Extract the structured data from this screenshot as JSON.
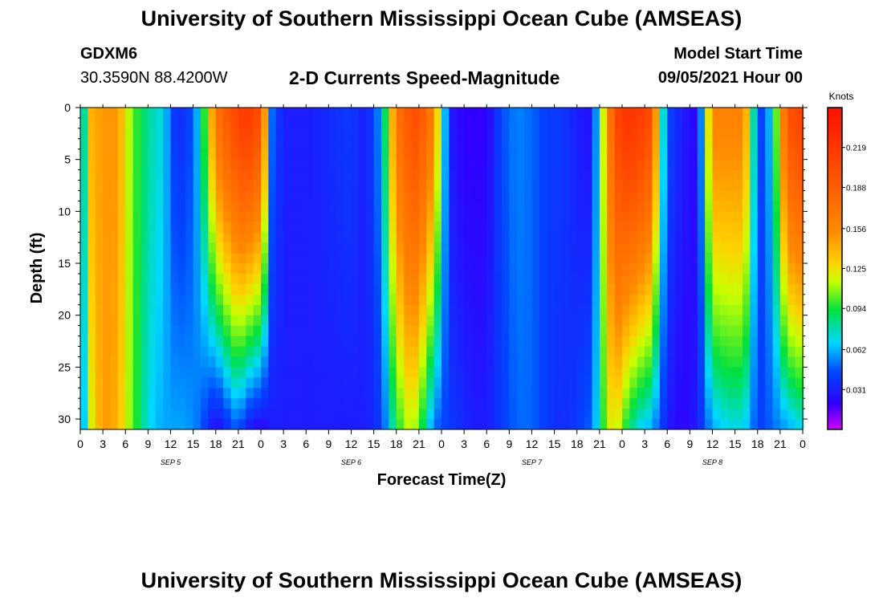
{
  "header": {
    "title": "University of Southern Mississippi Ocean Cube (AMSEAS)",
    "footer_title": "University of Southern Mississippi Ocean Cube (AMSEAS)",
    "station": "GDXM6",
    "coords": "30.3590N  88.4200W",
    "plot_title": "2-D Currents Speed-Magnitude",
    "model_start_label": "Model Start Time",
    "model_start_value": "09/05/2021 Hour 00"
  },
  "chart_data": {
    "type": "heatmap",
    "title": "2-D Currents Speed-Magnitude",
    "xlabel": "Forecast Time(Z)",
    "ylabel": "Depth (ft)",
    "x_ticks": [
      "0",
      "3",
      "6",
      "9",
      "12",
      "15",
      "18",
      "21",
      "0",
      "3",
      "6",
      "9",
      "12",
      "15",
      "18",
      "21",
      "0",
      "3",
      "6",
      "9",
      "12",
      "15",
      "18",
      "21",
      "0",
      "3",
      "6",
      "9",
      "12",
      "15",
      "18",
      "21",
      "0"
    ],
    "x_hours_range": [
      0,
      96
    ],
    "date_labels": [
      {
        "hour": 12,
        "label": "SEP 5"
      },
      {
        "hour": 36,
        "label": "SEP 6"
      },
      {
        "hour": 60,
        "label": "SEP 7"
      },
      {
        "hour": 84,
        "label": "SEP 8"
      }
    ],
    "y_ticks": [
      0,
      5,
      10,
      15,
      20,
      25,
      30
    ],
    "ylim": [
      0,
      31
    ],
    "colorbar": {
      "unit_label": "Knots",
      "tick_labels": [
        "0.219",
        "0.188",
        "0.156",
        "0.125",
        "0.094",
        "0.062",
        "0.031"
      ],
      "range": [
        0,
        0.25
      ]
    },
    "profile_hours": [
      0,
      1.5,
      3,
      5,
      7,
      9,
      11,
      12.5,
      14,
      16,
      18,
      20,
      21,
      22,
      24,
      25.5,
      27,
      30,
      33,
      36,
      38,
      40,
      42,
      44,
      45,
      47,
      49,
      51,
      52,
      54,
      56,
      58,
      60,
      62,
      64,
      66,
      68,
      70,
      71,
      72,
      74,
      76,
      77,
      78,
      80,
      82,
      84,
      86,
      88,
      89,
      90,
      92,
      94,
      96
    ],
    "profile_surface": [
      0.05,
      0.14,
      0.15,
      0.15,
      0.1,
      0.08,
      0.07,
      0.04,
      0.035,
      0.07,
      0.17,
      0.2,
      0.21,
      0.22,
      0.2,
      0.05,
      0.03,
      0.03,
      0.035,
      0.04,
      0.03,
      0.06,
      0.17,
      0.2,
      0.2,
      0.16,
      0.03,
      0.02,
      0.02,
      0.02,
      0.045,
      0.055,
      0.05,
      0.04,
      0.04,
      0.03,
      0.025,
      0.15,
      0.2,
      0.22,
      0.22,
      0.2,
      0.1,
      0.045,
      0.03,
      0.02,
      0.16,
      0.16,
      0.16,
      0.12,
      0.035,
      0.07,
      0.2,
      0.21
    ],
    "profile_bottom": [
      0.04,
      0.12,
      0.15,
      0.14,
      0.1,
      0.07,
      0.06,
      0.06,
      0.06,
      0.05,
      0.02,
      0.04,
      0.05,
      0.03,
      0.02,
      0.03,
      0.03,
      0.03,
      0.03,
      0.03,
      0.03,
      0.04,
      0.09,
      0.12,
      0.1,
      0.05,
      0.04,
      0.035,
      0.03,
      0.03,
      0.04,
      0.05,
      0.05,
      0.04,
      0.035,
      0.04,
      0.05,
      0.11,
      0.13,
      0.1,
      0.07,
      0.06,
      0.045,
      0.03,
      0.02,
      0.03,
      0.06,
      0.07,
      0.07,
      0.06,
      0.04,
      0.05,
      0.06,
      0.07
    ]
  }
}
